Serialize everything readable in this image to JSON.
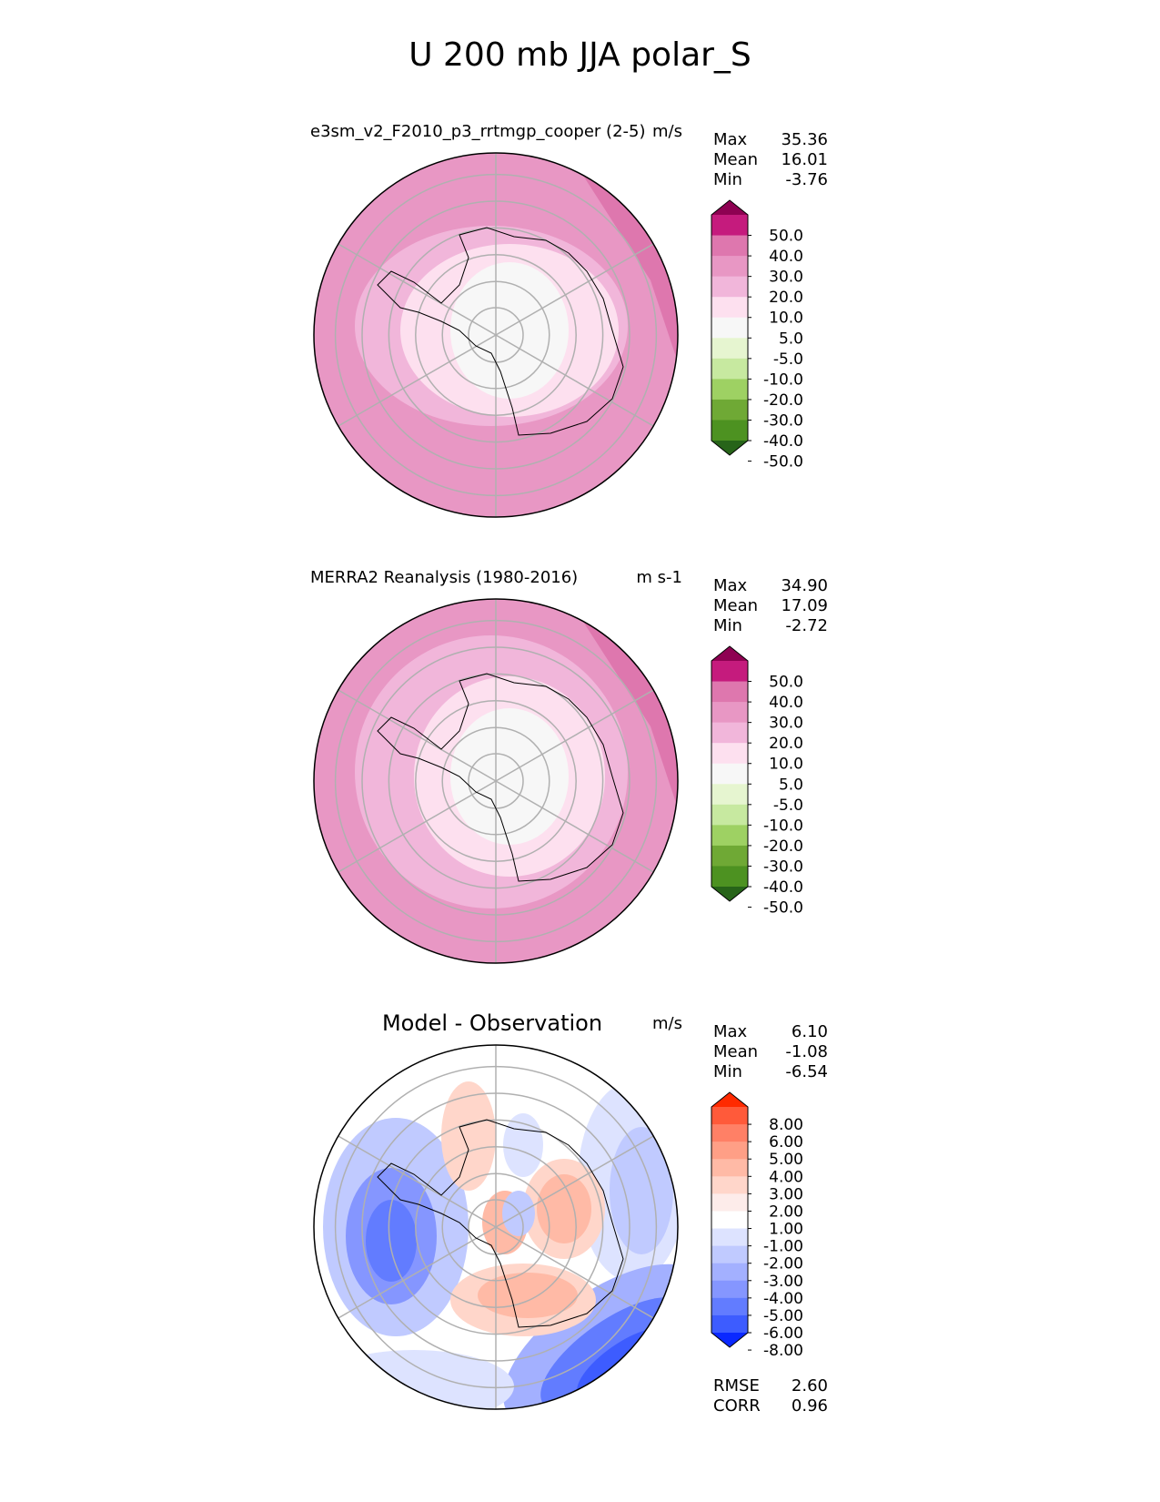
{
  "title": "U 200 mb JJA polar_S",
  "panels": [
    {
      "title": "e3sm_v2_F2010_p3_rrtmgp_cooper (2-5)",
      "units": "m/s",
      "stats": [
        {
          "label": "Max",
          "value": "35.36"
        },
        {
          "label": "Mean",
          "value": "16.01"
        },
        {
          "label": "Min",
          "value": "-3.76"
        }
      ],
      "colorbar": {
        "labels": [
          "50.0",
          "40.0",
          "30.0",
          "20.0",
          "10.0",
          "5.0",
          "-5.0",
          "-10.0",
          "-20.0",
          "-30.0",
          "-40.0",
          "-50.0"
        ],
        "colors": [
          "#8e0152",
          "#c51b7d",
          "#de77ae",
          "#e897c4",
          "#f1b6da",
          "#fde0ef",
          "#f7f7f7",
          "#e6f5d0",
          "#c7e9a0",
          "#9ed163",
          "#6fa935",
          "#4d9221",
          "#276419"
        ]
      },
      "bands": [
        {
          "level": 20,
          "color": "#e897c4"
        },
        {
          "level": 10,
          "color": "#f1b6da"
        },
        {
          "level": 5,
          "color": "#fde0ef"
        },
        {
          "level": -5,
          "color": "#f7f7f7"
        }
      ]
    },
    {
      "title": "MERRA2 Reanalysis (1980-2016)",
      "units": "m s-1",
      "stats": [
        {
          "label": "Max",
          "value": "34.90"
        },
        {
          "label": "Mean",
          "value": "17.09"
        },
        {
          "label": "Min",
          "value": "-2.72"
        }
      ],
      "colorbar": {
        "labels": [
          "50.0",
          "40.0",
          "30.0",
          "20.0",
          "10.0",
          "5.0",
          "-5.0",
          "-10.0",
          "-20.0",
          "-30.0",
          "-40.0",
          "-50.0"
        ],
        "colors": [
          "#8e0152",
          "#c51b7d",
          "#de77ae",
          "#e897c4",
          "#f1b6da",
          "#fde0ef",
          "#f7f7f7",
          "#e6f5d0",
          "#c7e9a0",
          "#9ed163",
          "#6fa935",
          "#4d9221",
          "#276419"
        ]
      },
      "bands": [
        {
          "level": 20,
          "color": "#e897c4"
        },
        {
          "level": 10,
          "color": "#f1b6da"
        },
        {
          "level": 5,
          "color": "#fde0ef"
        },
        {
          "level": -5,
          "color": "#f7f7f7"
        }
      ]
    },
    {
      "title": "Model - Observation",
      "units": "m/s",
      "stats": [
        {
          "label": "Max",
          "value": "6.10"
        },
        {
          "label": "Mean",
          "value": "-1.08"
        },
        {
          "label": "Min",
          "value": "-6.54"
        }
      ],
      "extra_stats": [
        {
          "label": "RMSE",
          "value": "2.60"
        },
        {
          "label": "CORR",
          "value": "0.96"
        }
      ],
      "colorbar": {
        "labels": [
          "8.00",
          "6.00",
          "5.00",
          "4.00",
          "3.00",
          "2.00",
          "1.00",
          "-1.00",
          "-2.00",
          "-3.00",
          "-4.00",
          "-5.00",
          "-6.00",
          "-8.00"
        ],
        "colors": [
          "#ff2a00",
          "#ff5a3a",
          "#ff8066",
          "#ff9f86",
          "#ffbaa6",
          "#ffd6ca",
          "#fdecea",
          "#ffffff",
          "#dde3ff",
          "#c0caff",
          "#a3b0ff",
          "#8596ff",
          "#627cff",
          "#3d5cff",
          "#0a28ff"
        ]
      },
      "blobs": [
        {
          "color": "#c0caff",
          "side": "west"
        },
        {
          "color": "#8596ff",
          "side": "west"
        },
        {
          "color": "#dde3ff",
          "side": "east"
        },
        {
          "color": "#627cff",
          "side": "southeast"
        },
        {
          "color": "#ffbaa6",
          "side": "south"
        },
        {
          "color": "#ffd6ca",
          "side": "north"
        },
        {
          "color": "#ffbaa6",
          "side": "east"
        }
      ]
    }
  ],
  "chart_data": [
    {
      "type": "heatmap",
      "title": "e3sm_v2_F2010_p3_rrtmgp_cooper (2-5)",
      "projection": "south polar stereographic",
      "units": "m/s",
      "contour_levels": [
        -50,
        -40,
        -30,
        -20,
        -10,
        -5,
        5,
        10,
        20,
        30,
        40,
        50
      ],
      "max": 35.36,
      "mean": 16.01,
      "min": -3.76
    },
    {
      "type": "heatmap",
      "title": "MERRA2 Reanalysis (1980-2016)",
      "projection": "south polar stereographic",
      "units": "m s-1",
      "contour_levels": [
        -50,
        -40,
        -30,
        -20,
        -10,
        -5,
        5,
        10,
        20,
        30,
        40,
        50
      ],
      "max": 34.9,
      "mean": 17.09,
      "min": -2.72
    },
    {
      "type": "heatmap",
      "title": "Model - Observation",
      "projection": "south polar stereographic",
      "units": "m/s",
      "contour_levels": [
        -8,
        -6,
        -5,
        -4,
        -3,
        -2,
        -1,
        1,
        2,
        3,
        4,
        5,
        6,
        8
      ],
      "max": 6.1,
      "mean": -1.08,
      "min": -6.54,
      "rmse": 2.6,
      "corr": 0.96
    }
  ]
}
